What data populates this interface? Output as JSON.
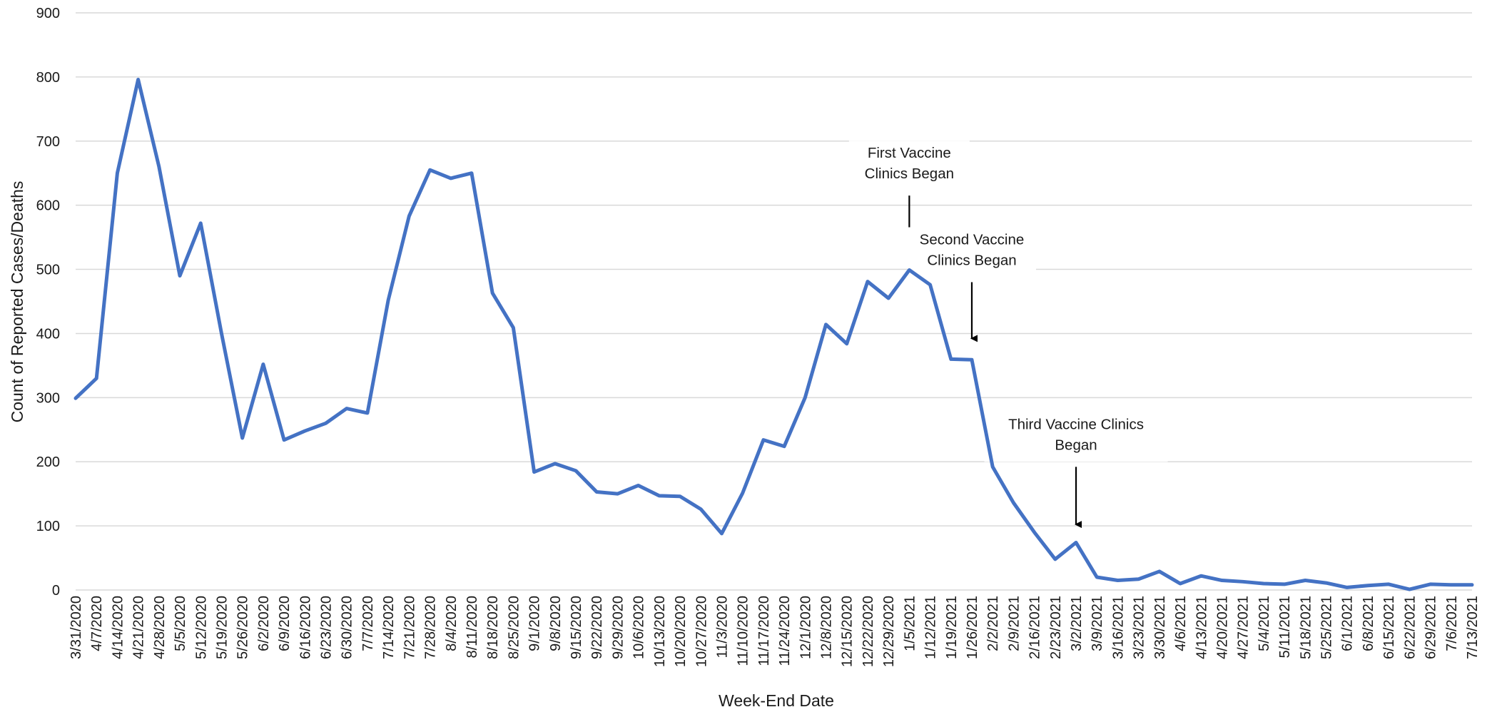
{
  "chart_data": {
    "type": "line",
    "title": "",
    "xlabel": "Week-End Date",
    "ylabel": "Count of Reported Cases/Deaths",
    "ylim": [
      0,
      900
    ],
    "yticks": [
      0,
      100,
      200,
      300,
      400,
      500,
      600,
      700,
      800,
      900
    ],
    "grid": "horizontal",
    "legend": "none",
    "x": [
      "3/31/2020",
      "4/7/2020",
      "4/14/2020",
      "4/21/2020",
      "4/28/2020",
      "5/5/2020",
      "5/12/2020",
      "5/19/2020",
      "5/26/2020",
      "6/2/2020",
      "6/9/2020",
      "6/16/2020",
      "6/23/2020",
      "6/30/2020",
      "7/7/2020",
      "7/14/2020",
      "7/21/2020",
      "7/28/2020",
      "8/4/2020",
      "8/11/2020",
      "8/18/2020",
      "8/25/2020",
      "9/1/2020",
      "9/8/2020",
      "9/15/2020",
      "9/22/2020",
      "9/29/2020",
      "10/6/2020",
      "10/13/2020",
      "10/20/2020",
      "10/27/2020",
      "11/3/2020",
      "11/10/2020",
      "11/17/2020",
      "11/24/2020",
      "12/1/2020",
      "12/8/2020",
      "12/15/2020",
      "12/22/2020",
      "12/29/2020",
      "1/5/2021",
      "1/12/2021",
      "1/19/2021",
      "1/26/2021",
      "2/2/2021",
      "2/9/2021",
      "2/16/2021",
      "2/23/2021",
      "3/2/2021",
      "3/9/2021",
      "3/16/2021",
      "3/23/2021",
      "3/30/2021",
      "4/6/2021",
      "4/13/2021",
      "4/20/2021",
      "4/27/2021",
      "5/4/2021",
      "5/11/2021",
      "5/18/2021",
      "5/25/2021",
      "6/1/2021",
      "6/8/2021",
      "6/15/2021",
      "6/22/2021",
      "6/29/2021",
      "7/6/2021",
      "7/13/2021"
    ],
    "values": [
      299,
      330,
      650,
      796,
      660,
      490,
      572,
      400,
      237,
      352,
      234,
      248,
      260,
      283,
      276,
      452,
      583,
      655,
      642,
      650,
      463,
      409,
      184,
      197,
      186,
      153,
      150,
      163,
      147,
      146,
      126,
      88,
      151,
      234,
      224,
      300,
      414,
      384,
      481,
      455,
      499,
      476,
      360,
      359,
      192,
      136,
      90,
      48,
      74,
      20,
      15,
      17,
      29,
      10,
      22,
      15,
      13,
      10,
      9,
      15,
      11,
      4,
      7,
      9,
      1,
      9,
      8,
      8
    ],
    "line_color": "#4472C4",
    "annotations": [
      {
        "lines": [
          "First Vaccine",
          "Clinics Began"
        ],
        "x": "1/5/2021",
        "arrow_from": 615,
        "arrow_to": 525
      },
      {
        "lines": [
          "Second Vaccine",
          "Clinics Began"
        ],
        "x": "1/26/2021",
        "arrow_from": 480,
        "arrow_to": 390
      },
      {
        "lines": [
          "Third Vaccine Clinics",
          "Began"
        ],
        "x": "3/2/2021",
        "arrow_from": 192,
        "arrow_to": 100
      }
    ]
  }
}
